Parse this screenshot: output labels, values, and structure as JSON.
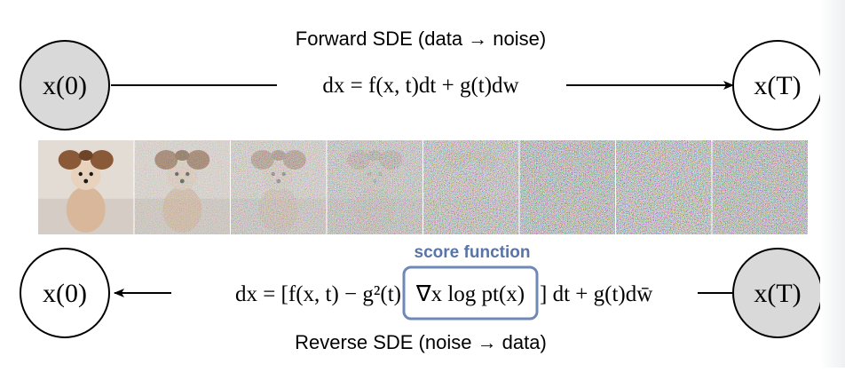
{
  "forward": {
    "caption": "Forward SDE (data → noise)",
    "start_node": "x(0)",
    "end_node": "x(T)",
    "equation": "dx = f(x, t)dt + g(t)dw"
  },
  "reverse": {
    "caption": "Reverse SDE (noise → data)",
    "start_node": "x(T)",
    "end_node": "x(0)",
    "equation_left": "dx = [f(x, t) − g²(t)",
    "score_term": "∇x log pt(x)",
    "equation_right": "] dt + g(t)dw̄",
    "score_label": "score function"
  },
  "image_strip": {
    "frame_count": 8,
    "noise_levels": [
      0.0,
      0.3,
      0.5,
      0.7,
      0.85,
      1.0,
      1.0,
      1.0
    ]
  },
  "colors": {
    "node_fill_data": "#ffffff",
    "node_fill_noise": "#d9d9d9",
    "score_box": "#6e88b8",
    "score_text": "#5874a8"
  }
}
